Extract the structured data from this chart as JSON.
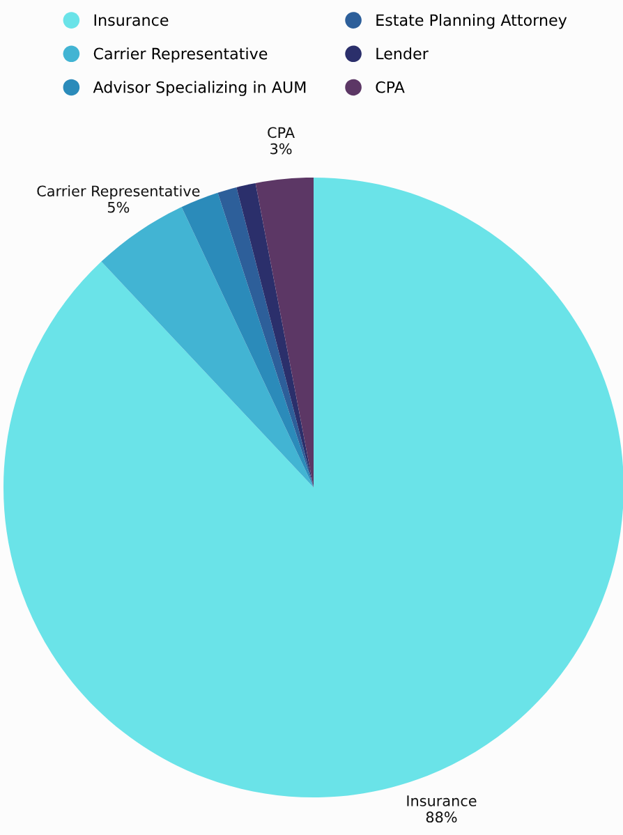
{
  "chart_data": {
    "type": "pie",
    "categories": [
      "Insurance",
      "Carrier Representative",
      "Advisor Specializing in AUM",
      "Estate Planning Attorney",
      "Lender",
      "CPA"
    ],
    "values": [
      88,
      5,
      2,
      1,
      1,
      3
    ],
    "colors": [
      "#6ae3e8",
      "#42b4d3",
      "#2b8bba",
      "#2d5f9a",
      "#2b2f6b",
      "#5c3765"
    ],
    "value_labels": [
      "88%",
      "5%",
      null,
      null,
      null,
      "3%"
    ],
    "legend": "top"
  }
}
